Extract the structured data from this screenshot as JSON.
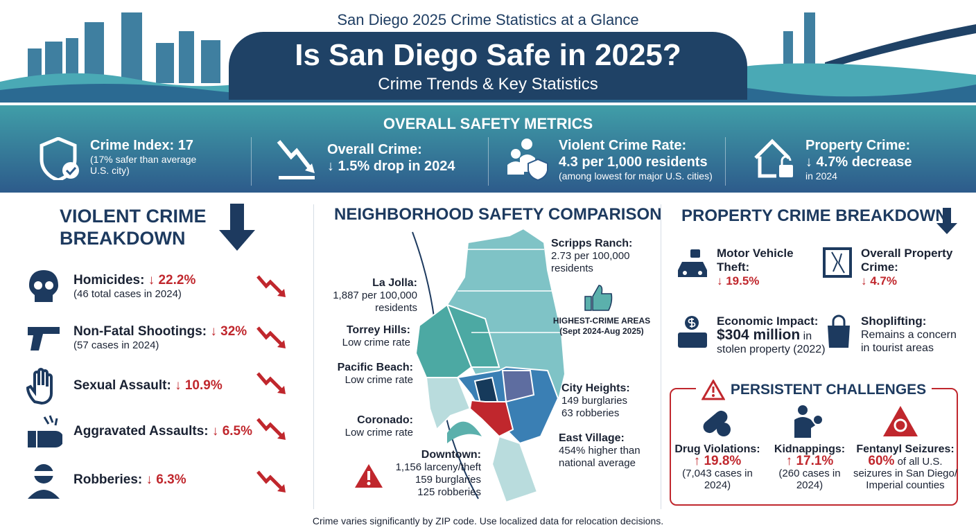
{
  "header": {
    "supertitle": "San Diego 2025 Crime Statistics at a Glance",
    "title": "Is San Diego Safe in 2025?",
    "subtitle": "Crime Trends & Key Statistics"
  },
  "metrics": {
    "heading": "OVERALL SAFETY METRICS",
    "items": [
      {
        "icon": "shield-check-icon",
        "title": "Crime Index: 17",
        "note": "(17% safer than average U.S. city)"
      },
      {
        "icon": "down-trend-icon",
        "title": "Overall Crime:",
        "value": "↓ 1.5% drop in 2024"
      },
      {
        "icon": "people-shield-icon",
        "title": "Violent Crime Rate:",
        "value": "4.3 per 1,000 residents",
        "note": "(among lowest for major U.S. cities)"
      },
      {
        "icon": "house-lock-icon",
        "title": "Property Crime:",
        "value": "↓ 4.7% decrease",
        "note": "in 2024"
      }
    ]
  },
  "violent": {
    "heading": "VIOLENT CRIME BREAKDOWN",
    "items": [
      {
        "icon": "skull-icon",
        "label": "Homicides:",
        "change": "↓ 22.2%",
        "note": "(46 total cases in 2024)"
      },
      {
        "icon": "gun-icon",
        "label": "Non-Fatal Shootings:",
        "change": "↓ 32%",
        "note": "(57 cases in 2024)"
      },
      {
        "icon": "hand-stop-icon",
        "label": "Sexual Assault:",
        "change": "↓ 10.9%"
      },
      {
        "icon": "fist-icon",
        "label": "Aggravated Assaults:",
        "change": "↓ 6.5%"
      },
      {
        "icon": "robber-icon",
        "label": "Robberies:",
        "change": "↓ 6.3%"
      }
    ]
  },
  "neighborhood": {
    "heading": "NEIGHBORHOOD SAFETY COMPARISON",
    "la_jolla": {
      "name": "La Jolla:",
      "l1": "1,887 per 100,000",
      "l2": "residents"
    },
    "torrey": {
      "name": "Torrey Hills:",
      "l1": "Low crime rate"
    },
    "pacific": {
      "name": "Pacific Beach:",
      "l1": "Low crime rate"
    },
    "coronado": {
      "name": "Coronado:",
      "l1": "Low crime rate"
    },
    "downtown": {
      "name": "Downtown:",
      "l1": "1,156 larceny/theft",
      "l2": "159 burglaries",
      "l3": "125 robberies"
    },
    "scripps": {
      "name": "Scripps Ranch:",
      "l1": "2.73 per 100,000",
      "l2": "residents"
    },
    "highest": {
      "l1": "HIGHEST-CRIME AREAS",
      "l2": "(Sept 2024-Aug 2025)"
    },
    "city_heights": {
      "name": "City Heights:",
      "l1": "149 burglaries",
      "l2": "63 robberies"
    },
    "east_village": {
      "name": "East Village:",
      "l1": "454% higher than",
      "l2": "national average"
    }
  },
  "property": {
    "heading": "PROPERTY CRIME BREAKDOWN",
    "mvt": {
      "l1": "Motor Vehicle",
      "l2": "Theft:",
      "change": "↓ 19.5%"
    },
    "overall": {
      "l1": "Overall Property",
      "l2": "Crime:",
      "change": "↓ 4.7%"
    },
    "econ": {
      "l1": "Economic Impact:",
      "value": "$304 million",
      "in": " in",
      "l2": "stolen property (2022)"
    },
    "shop": {
      "l1": "Shoplifting:",
      "l2": "Remains a concern",
      "l3": "in tourist areas"
    }
  },
  "challenges": {
    "heading": "PERSISTENT CHALLENGES",
    "items": [
      {
        "label": "Drug Violations:",
        "change": "↑ 19.8%",
        "l1": "(7,043 cases in",
        "l2": "2024)"
      },
      {
        "label": "Kidnappings:",
        "change": "↑ 17.1%",
        "l1": "(260 cases in",
        "l2": "2024)"
      },
      {
        "label": "Fentanyl Seizures:",
        "change": "60%",
        "rest": " of all U.S.",
        "l1": "seizures in San Diego/",
        "l2": "Imperial counties"
      }
    ]
  },
  "footer": "Crime varies significantly by ZIP code. Use localized data for relocation decisions.",
  "colors": {
    "navy": "#1d3a5f",
    "teal": "#409ea8",
    "red": "#c0272d"
  }
}
